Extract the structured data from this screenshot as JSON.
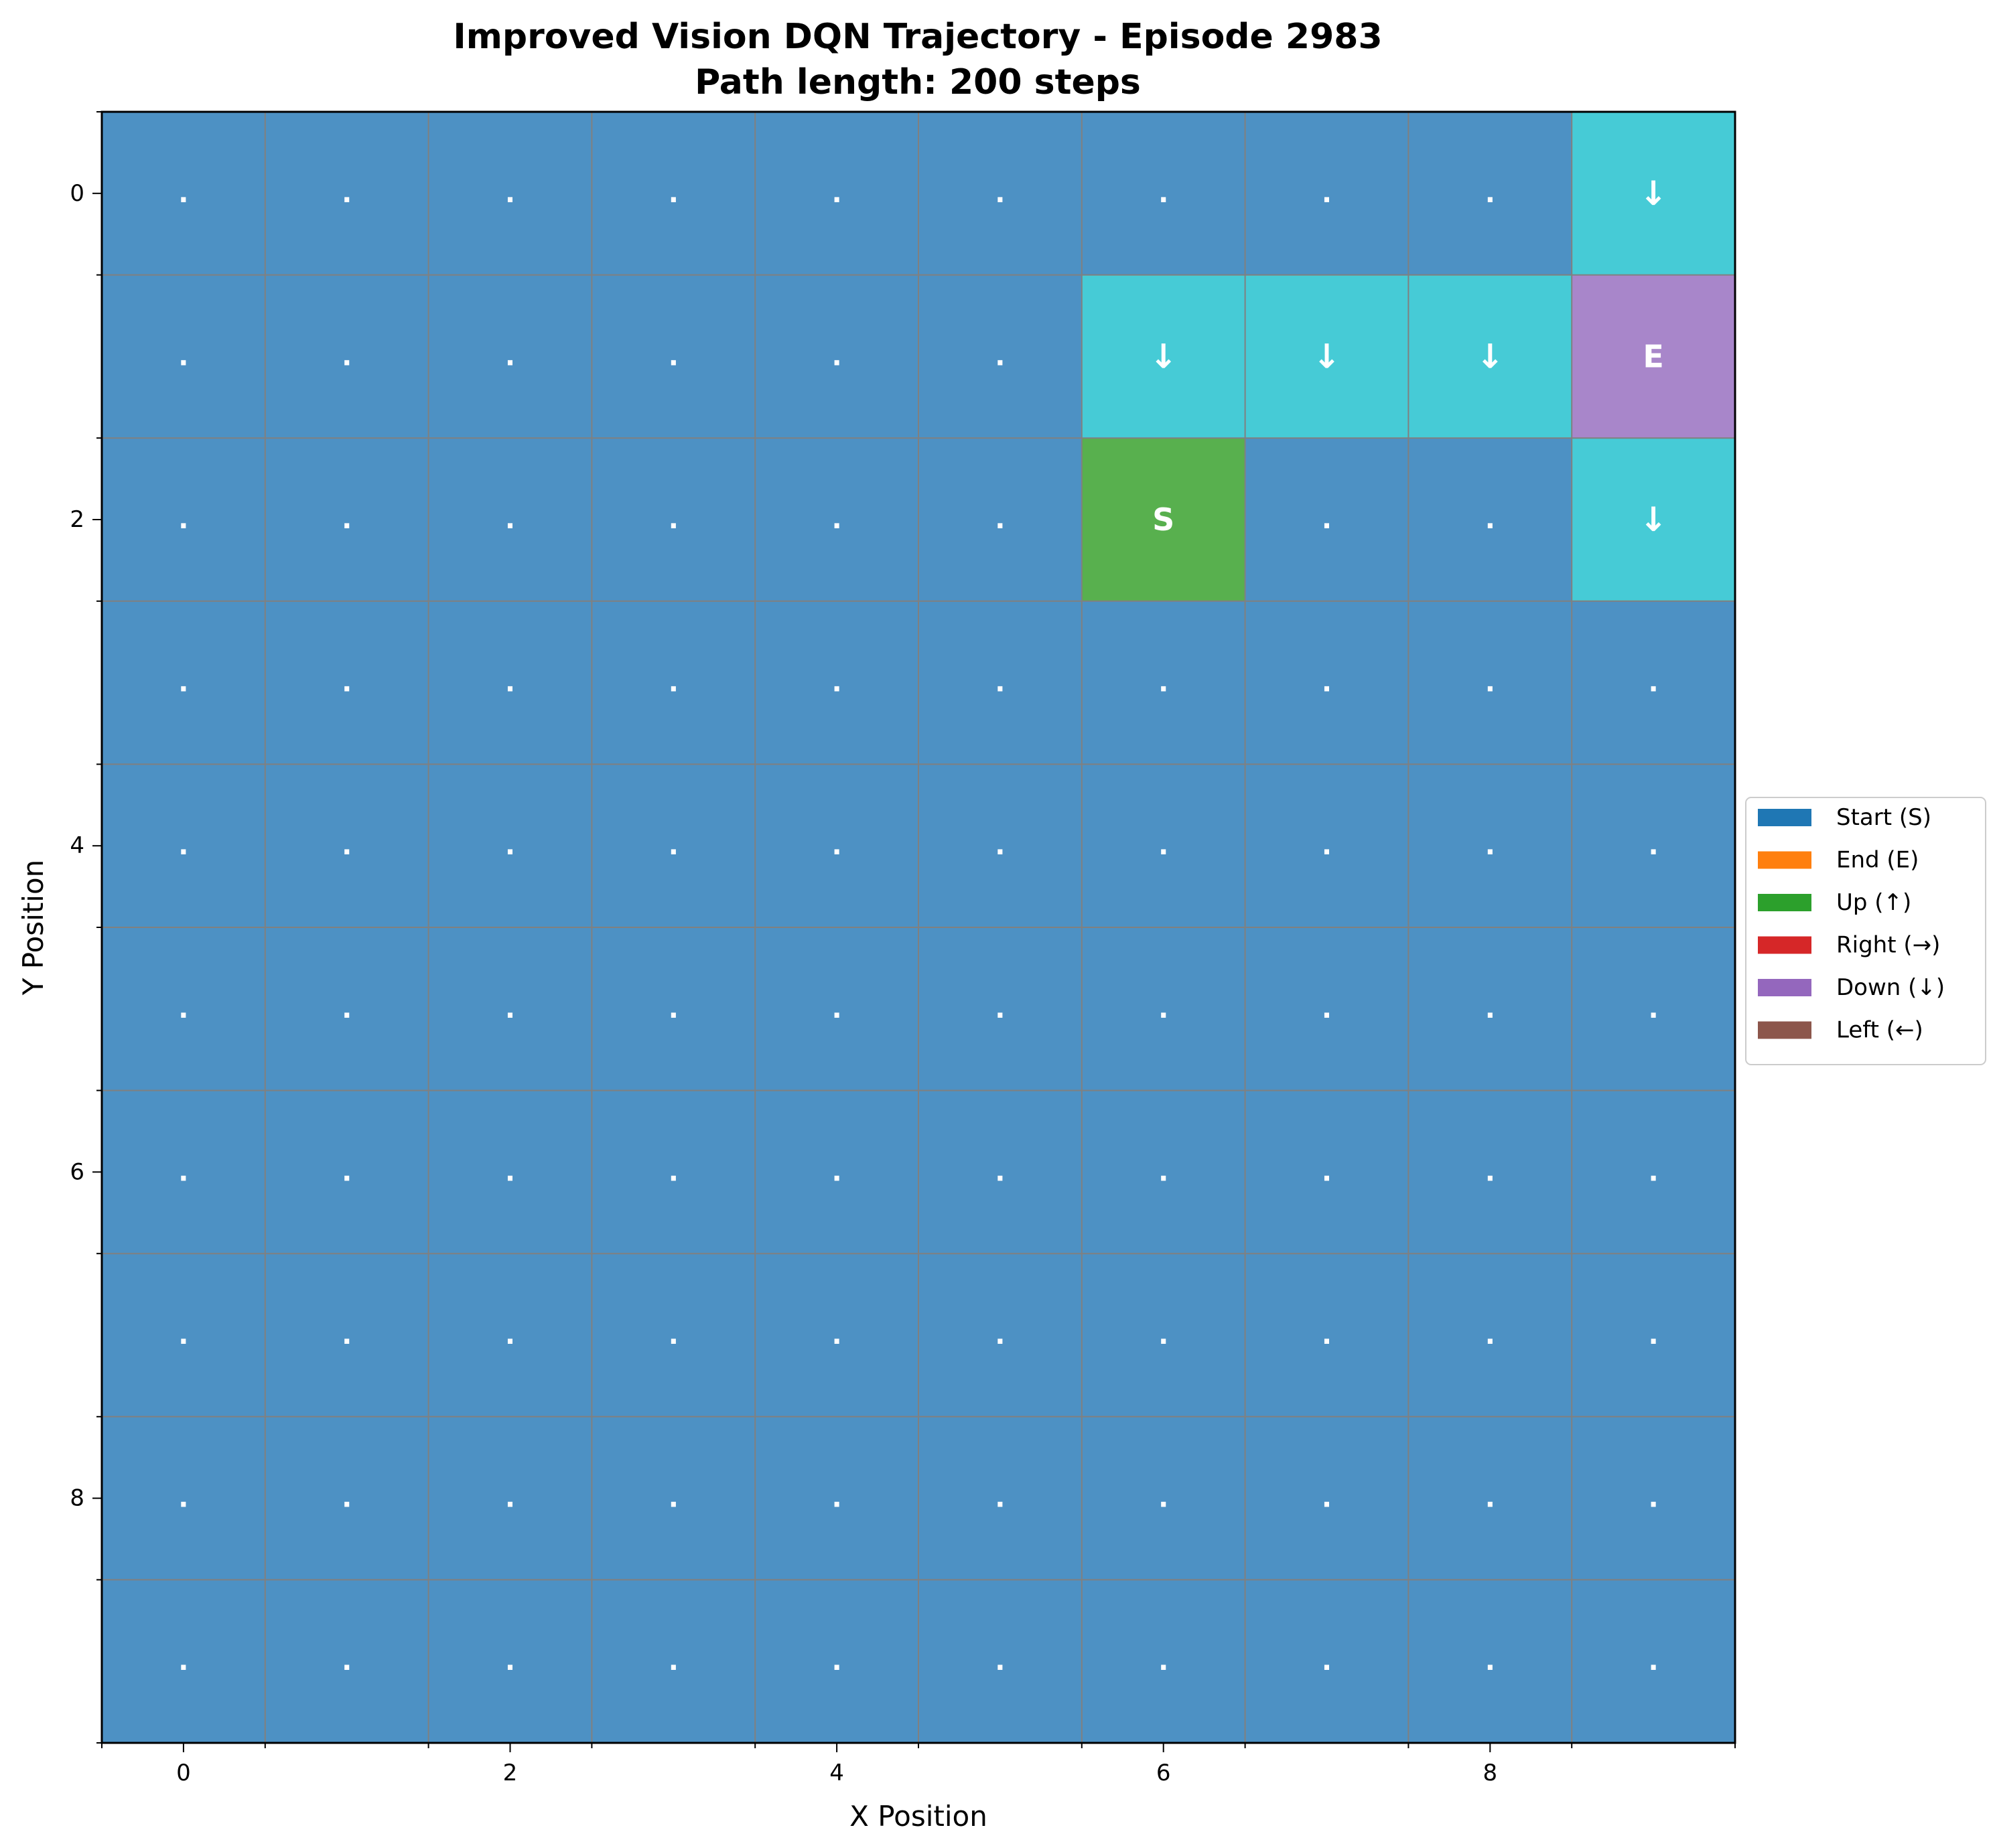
{
  "chart_data": {
    "type": "heatmap",
    "title": "Improved Vision DQN Trajectory - Episode 2983",
    "subtitle": "Path length: 200 steps",
    "xlabel": "X Position",
    "ylabel": "Y Position",
    "x_ticks": [
      "0",
      "2",
      "4",
      "6",
      "8"
    ],
    "y_ticks": [
      "0",
      "2",
      "4",
      "6",
      "8"
    ],
    "xlim": [
      -0.5,
      9.5
    ],
    "ylim": [
      9.5,
      -0.5
    ],
    "grid": true,
    "grid_size": [
      10,
      10
    ],
    "colors": {
      "background_cell": "#4d91c4",
      "path_cell": "#46cbd6",
      "start_cell": "#58b04e",
      "end_cell": "#a886ca",
      "grid_line": "#808080",
      "cell_text": "#ffffff"
    },
    "empty_marker": ".",
    "path_cells": [
      {
        "x": 9,
        "y": 0,
        "label": "↓",
        "kind": "path"
      },
      {
        "x": 6,
        "y": 1,
        "label": "↓",
        "kind": "path"
      },
      {
        "x": 7,
        "y": 1,
        "label": "↓",
        "kind": "path"
      },
      {
        "x": 8,
        "y": 1,
        "label": "↓",
        "kind": "path"
      },
      {
        "x": 9,
        "y": 1,
        "label": "E",
        "kind": "end"
      },
      {
        "x": 6,
        "y": 2,
        "label": "S",
        "kind": "start"
      },
      {
        "x": 9,
        "y": 2,
        "label": "↓",
        "kind": "path"
      }
    ],
    "legend": {
      "placement": "center-right",
      "entries": [
        {
          "label": "Start (S)",
          "color": "#1f77b4"
        },
        {
          "label": "End (E)",
          "color": "#ff7f0e"
        },
        {
          "label": "Up (↑)",
          "color": "#2ca02c"
        },
        {
          "label": "Right (→)",
          "color": "#d62728"
        },
        {
          "label": "Down (↓)",
          "color": "#9467bd"
        },
        {
          "label": "Left (←)",
          "color": "#8c564b"
        }
      ]
    }
  }
}
